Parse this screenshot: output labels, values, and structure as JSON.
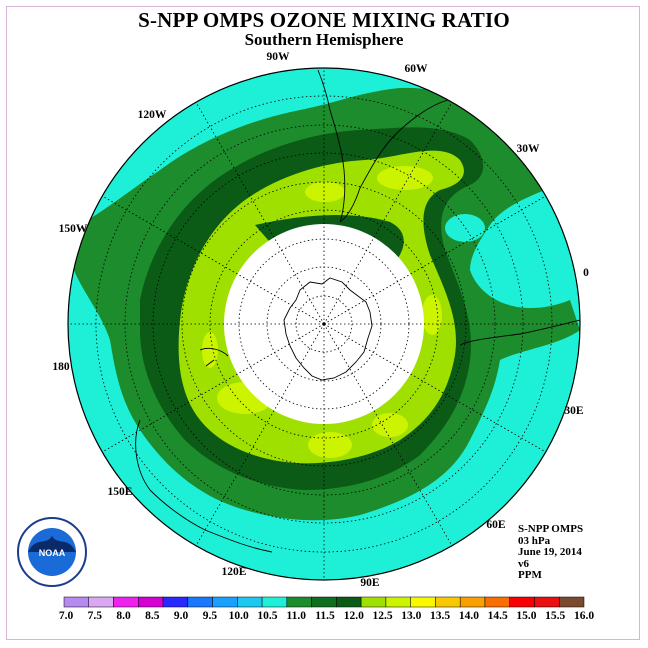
{
  "title": "S-NPP OMPS OZONE MIXING RATIO",
  "subtitle": "Southern Hemisphere",
  "longitude_labels": [
    {
      "text": "90W"
    },
    {
      "text": "60W"
    },
    {
      "text": "30W"
    },
    {
      "text": "0"
    },
    {
      "text": "30E"
    },
    {
      "text": "60E"
    },
    {
      "text": "90E"
    },
    {
      "text": "120E"
    },
    {
      "text": "150E"
    },
    {
      "text": "180"
    },
    {
      "text": "150W"
    },
    {
      "text": "120W"
    }
  ],
  "info": {
    "product": "S-NPP OMPS",
    "level": "03 hPa",
    "date": "June 19, 2014",
    "version": "v6",
    "units": "PPM"
  },
  "colorbar": {
    "ticks": [
      "7.0",
      "7.5",
      "8.0",
      "8.5",
      "9.0",
      "9.5",
      "10.0",
      "10.5",
      "11.0",
      "11.5",
      "12.0",
      "12.5",
      "13.0",
      "13.5",
      "14.0",
      "14.5",
      "15.0",
      "15.5",
      "16.0"
    ],
    "colors": [
      "#b68bf0",
      "#d9a8f0",
      "#ee22ee",
      "#d400d4",
      "#2828ff",
      "#1a78ff",
      "#1aa0ff",
      "#1ac8f0",
      "#1ef0d8",
      "#1c8c2c",
      "#0f6e1f",
      "#0b5a16",
      "#a0e000",
      "#ccf400",
      "#f8f800",
      "#f8c800",
      "#f8a000",
      "#f86e00",
      "#f80000",
      "#e81010",
      "#7a4a2e"
    ]
  },
  "logo": {
    "text": "NOAA"
  },
  "legend_colors": {
    "cyan": "#1ef0d8",
    "green_light": "#1c8c2c",
    "green_dark": "#0b5a16",
    "lime": "#a0e000",
    "yellow_green": "#ccf400"
  }
}
